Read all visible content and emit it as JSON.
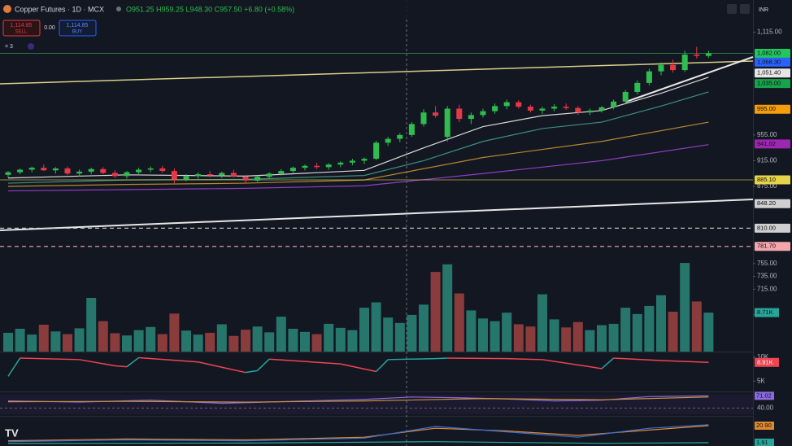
{
  "chart_data": {
    "type": "candlestick",
    "title": "Copper Futures · 1D · MCX",
    "ohlc_legend": "O951.25 H959.25 L948.30 C957.50 +6.80 (+0.58%)",
    "sell_price": "1,114.85",
    "sell_label": "SELL",
    "spread": "0.00",
    "buy_price": "1,114.85",
    "buy_label": "BUY",
    "indicator_count": "= 3",
    "currency": "INR",
    "logo": "TV",
    "up_color": "#2ebd4e",
    "down_color": "#e53945",
    "ylim": [
      618,
      1165
    ],
    "yticks": [
      {
        "value": 1115,
        "label": "1,115.00"
      },
      {
        "value": 955,
        "label": "955.00"
      },
      {
        "value": 915,
        "label": "915.00"
      },
      {
        "value": 875,
        "label": "875.00"
      },
      {
        "value": 755,
        "label": "755.00"
      },
      {
        "value": 735,
        "label": "735.00"
      },
      {
        "value": 715,
        "label": "715.00"
      },
      {
        "value": 675,
        "label": "675.00"
      }
    ],
    "candles": [
      [
        893,
        899,
        889,
        897
      ],
      [
        897,
        903,
        894,
        901
      ],
      [
        901,
        906,
        897,
        904
      ],
      [
        904,
        909,
        899,
        900
      ],
      [
        900,
        905,
        895,
        903
      ],
      [
        903,
        906,
        893,
        895
      ],
      [
        895,
        901,
        890,
        898
      ],
      [
        898,
        904,
        894,
        902
      ],
      [
        902,
        905,
        894,
        896
      ],
      [
        896,
        900,
        888,
        891
      ],
      [
        891,
        899,
        887,
        897
      ],
      [
        897,
        904,
        894,
        901
      ],
      [
        901,
        906,
        897,
        903
      ],
      [
        903,
        907,
        896,
        899
      ],
      [
        899,
        903,
        880,
        886
      ],
      [
        886,
        894,
        883,
        891
      ],
      [
        891,
        897,
        887,
        894
      ],
      [
        894,
        899,
        889,
        892
      ],
      [
        892,
        898,
        888,
        896
      ],
      [
        896,
        901,
        889,
        890
      ],
      [
        890,
        893,
        881,
        884
      ],
      [
        884,
        892,
        882,
        890
      ],
      [
        890,
        897,
        887,
        895
      ],
      [
        895,
        902,
        892,
        899
      ],
      [
        899,
        906,
        896,
        904
      ],
      [
        904,
        909,
        900,
        907
      ],
      [
        907,
        912,
        902,
        905
      ],
      [
        905,
        911,
        901,
        909
      ],
      [
        909,
        914,
        905,
        912
      ],
      [
        912,
        918,
        908,
        915
      ],
      [
        915,
        920,
        910,
        918
      ],
      [
        918,
        946,
        916,
        943
      ],
      [
        943,
        952,
        938,
        949
      ],
      [
        949,
        958,
        944,
        955
      ],
      [
        955,
        975,
        952,
        972
      ],
      [
        972,
        995,
        968,
        990
      ],
      [
        990,
        1000,
        982,
        985
      ],
      [
        952,
        1000,
        945,
        996
      ],
      [
        996,
        1002,
        975,
        980
      ],
      [
        980,
        990,
        972,
        986
      ],
      [
        986,
        996,
        982,
        992
      ],
      [
        992,
        1004,
        988,
        1000
      ],
      [
        1000,
        1010,
        995,
        1006
      ],
      [
        1006,
        1009,
        996,
        999
      ],
      [
        999,
        1002,
        990,
        993
      ],
      [
        993,
        999,
        988,
        996
      ],
      [
        996,
        1003,
        992,
        999
      ],
      [
        999,
        1004,
        994,
        997
      ],
      [
        997,
        1000,
        986,
        990
      ],
      [
        990,
        996,
        986,
        993
      ],
      [
        993,
        1000,
        990,
        998
      ],
      [
        998,
        1010,
        995,
        1007
      ],
      [
        1007,
        1025,
        1004,
        1022
      ],
      [
        1022,
        1040,
        1018,
        1036
      ],
      [
        1036,
        1058,
        1032,
        1054
      ],
      [
        1054,
        1068,
        1048,
        1064
      ],
      [
        1064,
        1072,
        1052,
        1056
      ],
      [
        1056,
        1086,
        1053,
        1080
      ],
      [
        1080,
        1092,
        1074,
        1078
      ],
      [
        1078,
        1086,
        1075,
        1082
      ]
    ],
    "moving_averages": [
      {
        "color": "#d9d9d9",
        "x": [
          0,
          10,
          20,
          30,
          35,
          40,
          45,
          50,
          55,
          59
        ],
        "values": [
          888,
          893,
          891,
          900,
          935,
          968,
          985,
          993,
          1020,
          1045
        ]
      },
      {
        "color": "#3d8f7f",
        "x": [
          0,
          10,
          20,
          30,
          35,
          40,
          45,
          50,
          55,
          59
        ],
        "values": [
          880,
          885,
          886,
          892,
          915,
          945,
          965,
          975,
          1000,
          1022
        ]
      },
      {
        "color": "#b8862e",
        "x": [
          0,
          10,
          20,
          30,
          40,
          50,
          59
        ],
        "values": [
          875,
          878,
          880,
          885,
          920,
          945,
          975
        ]
      },
      {
        "color": "#8e3fc4",
        "x": [
          0,
          10,
          20,
          30,
          40,
          50,
          59
        ],
        "values": [
          868,
          870,
          872,
          876,
          895,
          915,
          940
        ]
      }
    ],
    "levels": [
      {
        "value": 1082,
        "label": "1,082.00",
        "color": "#22c55e",
        "line": "solid"
      },
      {
        "value": 1068.3,
        "label": "1,068.30",
        "color": "#2962ff",
        "line": "none"
      },
      {
        "value": 1051.4,
        "label": "1,051.40",
        "color": "#e6e6e6",
        "line": "none"
      },
      {
        "value": 1035,
        "label": "1,035.00",
        "color": "#16a34a",
        "line": "none"
      },
      {
        "value": 995,
        "label": "995.00",
        "color": "#f59e0b",
        "line": "none"
      },
      {
        "value": 941.02,
        "color": "#9c27b0",
        "line": "none"
      },
      {
        "value": 885.1,
        "label": "885.10",
        "color": "#e5d34a",
        "line": "solid"
      },
      {
        "value": 848.2,
        "label": "848.20",
        "color": "#d0d0d0",
        "line": "none"
      },
      {
        "value": 810,
        "label": "810.00",
        "color": "#cfcfcf",
        "line": "dashed"
      },
      {
        "value": 781.7,
        "label": "781.70",
        "color": "#f4a6ad",
        "line": "dashed"
      }
    ],
    "volume": {
      "ylim": [
        0,
        20000
      ],
      "up_color": "#26766c",
      "down_color": "#8a3b3b",
      "value_label": "8.71K",
      "values": [
        4200,
        5100,
        3800,
        6000,
        4500,
        3900,
        5200,
        12000,
        6800,
        4100,
        3600,
        4800,
        5500,
        3900,
        8500,
        4700,
        3800,
        4200,
        6100,
        3500,
        4900,
        5600,
        4300,
        7800,
        5100,
        4400,
        3900,
        6200,
        5300,
        4800,
        9800,
        11000,
        7600,
        6400,
        8200,
        10500,
        17800,
        19500,
        13000,
        9200,
        7400,
        6800,
        8700,
        6100,
        5600,
        12800,
        7200,
        5400,
        6600,
        4800,
        5900,
        6200,
        9800,
        8400,
        10200,
        12600,
        8900,
        19800,
        11200,
        8710
      ]
    },
    "oscillator": {
      "up_color": "#26a69a",
      "down_color": "#ef4452",
      "ylim": [
        3000,
        11000
      ],
      "yticks": [
        {
          "value": 10000,
          "label": "10K"
        },
        {
          "value": 5000,
          "label": "5K"
        }
      ],
      "value_label": "8.91K",
      "x": [
        0,
        1,
        6,
        9,
        10,
        11,
        16,
        20,
        21,
        22,
        28,
        31,
        32,
        36,
        37,
        42,
        45,
        49,
        50,
        51,
        55,
        59
      ],
      "values": [
        6000,
        9800,
        9500,
        8200,
        8000,
        9900,
        9000,
        6800,
        7200,
        9600,
        8600,
        7000,
        9500,
        9700,
        9800,
        9700,
        9500,
        8000,
        7600,
        9800,
        9300,
        8910
      ]
    },
    "rsi": {
      "ylim": [
        20,
        80
      ],
      "yticks": [
        {
          "value": 40,
          "label": "40.00"
        }
      ],
      "series": [
        {
          "color": "#8c6be0",
          "x": [
            0,
            6,
            12,
            18,
            24,
            30,
            34,
            38,
            42,
            46,
            50,
            54,
            59
          ],
          "values": [
            58,
            55,
            60,
            52,
            57,
            62,
            68,
            66,
            63,
            58,
            60,
            69,
            71.02
          ]
        },
        {
          "color": "#c9913a",
          "x": [
            0,
            10,
            20,
            30,
            40,
            50,
            59
          ],
          "values": [
            56,
            57,
            55,
            58,
            64,
            61,
            68
          ]
        }
      ]
    },
    "macd": {
      "ylim": [
        0,
        30
      ],
      "series": [
        {
          "color": "#e08a2c",
          "x": [
            0,
            10,
            20,
            30,
            36,
            42,
            48,
            54,
            59
          ],
          "values": [
            4,
            6,
            5,
            8,
            18,
            15,
            10,
            16,
            20.9
          ],
          "value_label": "20.90"
        },
        {
          "color": "#3b6fd8",
          "x": [
            0,
            10,
            20,
            30,
            36,
            42,
            48,
            54,
            59
          ],
          "values": [
            3,
            5,
            4,
            7,
            20,
            14,
            8,
            18,
            22
          ]
        },
        {
          "color": "#26a69a",
          "x": [
            0,
            20,
            36,
            50,
            59
          ],
          "values": [
            1,
            1.5,
            3,
            1.2,
            1.91
          ]
        }
      ]
    }
  }
}
